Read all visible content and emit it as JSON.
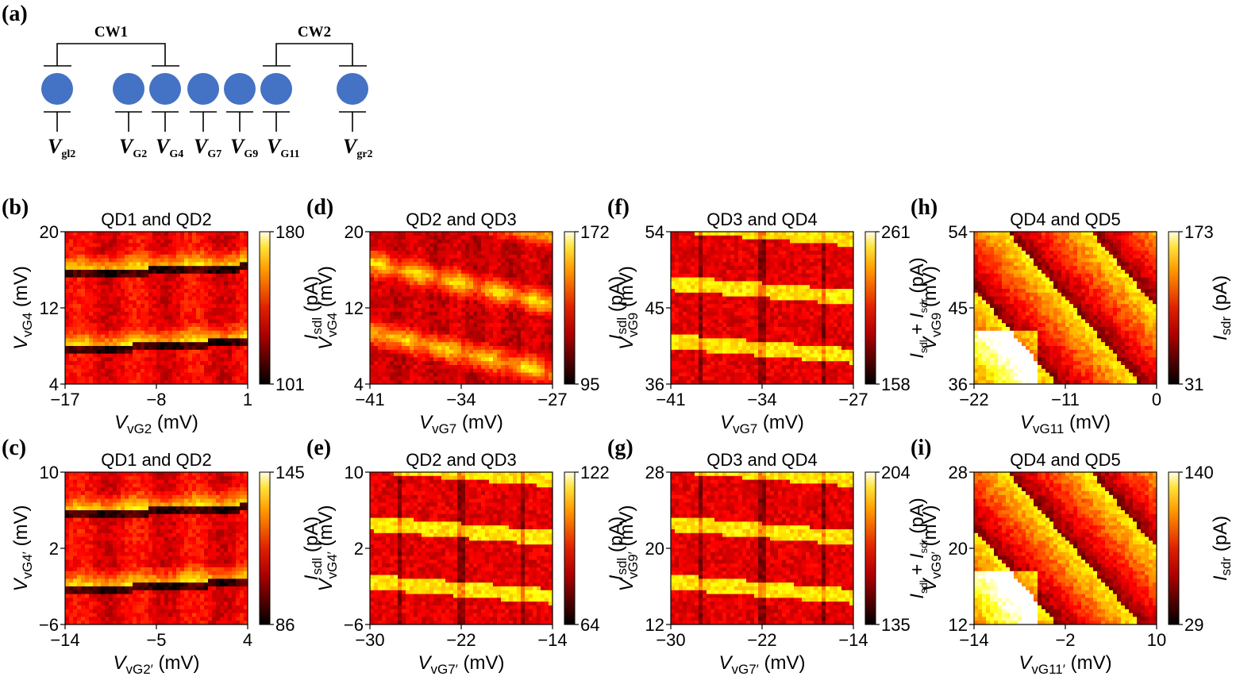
{
  "schematic": {
    "label": "(a)",
    "connections": [
      {
        "name": "CW1"
      },
      {
        "name": "CW2"
      }
    ],
    "gates": [
      {
        "letter": "V",
        "sub": "gl2"
      },
      {
        "letter": "V",
        "sub": "G2"
      },
      {
        "letter": "V",
        "sub": "G4"
      },
      {
        "letter": "V",
        "sub": "G7"
      },
      {
        "letter": "V",
        "sub": "G9"
      },
      {
        "letter": "V",
        "sub": "G11"
      },
      {
        "letter": "V",
        "sub": "gr2"
      }
    ],
    "dot_color": "#4472C4"
  },
  "chart_data": [
    {
      "id": "b",
      "label": "(b)",
      "type": "heatmap",
      "title": "QD1 and QD2",
      "xlabel": {
        "main": "V",
        "sub": "vG2",
        "prime": "",
        "unit": " (mV)"
      },
      "ylabel": {
        "main": "V",
        "sub": "vG4",
        "prime": "",
        "unit": " (mV)"
      },
      "xlim": [
        -17,
        1
      ],
      "ylim": [
        4,
        20
      ],
      "xticks": [
        "−17",
        "−8",
        "1"
      ],
      "yticks": [
        "4",
        "12",
        "20"
      ],
      "colorbar": {
        "range": [
          101,
          180
        ],
        "ticks": [
          "101",
          "180"
        ],
        "label_parts": [
          {
            "t": "I",
            "i": true
          },
          {
            "t": "sdl",
            "s": true
          },
          {
            "t": " (pA)"
          }
        ]
      }
    },
    {
      "id": "d",
      "label": "(d)",
      "type": "heatmap",
      "title": "QD2 and QD3",
      "xlabel": {
        "main": "V",
        "sub": "vG7",
        "prime": "",
        "unit": " (mV)"
      },
      "ylabel": {
        "main": "V",
        "sub": "vG4",
        "prime": "",
        "unit": " (mV)"
      },
      "xlim": [
        -41,
        -27
      ],
      "ylim": [
        4,
        20
      ],
      "xticks": [
        "−41",
        "−34",
        "−27"
      ],
      "yticks": [
        "4",
        "12",
        "20"
      ],
      "colorbar": {
        "range": [
          95,
          172
        ],
        "ticks": [
          "95",
          "172"
        ],
        "label_parts": [
          {
            "t": "I",
            "i": true
          },
          {
            "t": "sdl",
            "s": true
          },
          {
            "t": " (pA)"
          }
        ]
      }
    },
    {
      "id": "f",
      "label": "(f)",
      "type": "heatmap",
      "title": "QD3 and QD4",
      "xlabel": {
        "main": "V",
        "sub": "vG7",
        "prime": "",
        "unit": " (mV)"
      },
      "ylabel": {
        "main": "V",
        "sub": "vG9",
        "prime": "",
        "unit": " (mV)"
      },
      "xlim": [
        -41,
        -27
      ],
      "ylim": [
        36,
        54
      ],
      "xticks": [
        "−41",
        "−34",
        "−27"
      ],
      "yticks": [
        "36",
        "45",
        "54"
      ],
      "colorbar": {
        "range": [
          158,
          261
        ],
        "ticks": [
          "158",
          "261"
        ],
        "label_parts": [
          {
            "t": "I",
            "i": true
          },
          {
            "t": "sdl",
            "s": true
          },
          {
            "t": " + "
          },
          {
            "t": "I",
            "i": true
          },
          {
            "t": "sdr",
            "s": true
          },
          {
            "t": " (pA)"
          }
        ]
      }
    },
    {
      "id": "h",
      "label": "(h)",
      "type": "heatmap",
      "title": "QD4 and QD5",
      "xlabel": {
        "main": "V",
        "sub": "vG11",
        "prime": "",
        "unit": " (mV)"
      },
      "ylabel": {
        "main": "V",
        "sub": "vG9",
        "prime": "",
        "unit": " (mV)"
      },
      "xlim": [
        -22,
        0
      ],
      "ylim": [
        36,
        54
      ],
      "xticks": [
        "−22",
        "−11",
        "0"
      ],
      "yticks": [
        "36",
        "45",
        "54"
      ],
      "colorbar": {
        "range": [
          31,
          173
        ],
        "ticks": [
          "31",
          "173"
        ],
        "label_parts": [
          {
            "t": "I",
            "i": true
          },
          {
            "t": "sdr",
            "s": true
          },
          {
            "t": " (pA)"
          }
        ]
      }
    },
    {
      "id": "c",
      "label": "(c)",
      "type": "heatmap",
      "title": "QD1 and QD2",
      "xlabel": {
        "main": "V",
        "sub": "vG2",
        "prime": "′",
        "unit": " (mV)"
      },
      "ylabel": {
        "main": "V",
        "sub": "vG4",
        "prime": "′",
        "unit": " (mV)"
      },
      "xlim": [
        -14,
        4
      ],
      "ylim": [
        -6,
        10
      ],
      "xticks": [
        "−14",
        "−5",
        "4"
      ],
      "yticks": [
        "−6",
        "2",
        "10"
      ],
      "colorbar": {
        "range": [
          86,
          145
        ],
        "ticks": [
          "86",
          "145"
        ],
        "label_parts": [
          {
            "t": "I",
            "i": true
          },
          {
            "t": "sdl",
            "s": true
          },
          {
            "t": " (pA)"
          }
        ]
      }
    },
    {
      "id": "e",
      "label": "(e)",
      "type": "heatmap",
      "title": "QD2 and QD3",
      "xlabel": {
        "main": "V",
        "sub": "vG7",
        "prime": "′",
        "unit": " (mV)"
      },
      "ylabel": {
        "main": "V",
        "sub": "vG4",
        "prime": "′",
        "unit": " (mV)"
      },
      "xlim": [
        -30,
        -14
      ],
      "ylim": [
        -6,
        10
      ],
      "xticks": [
        "−30",
        "−22",
        "−14"
      ],
      "yticks": [
        "−6",
        "2",
        "10"
      ],
      "colorbar": {
        "range": [
          64,
          122
        ],
        "ticks": [
          "64",
          "122"
        ],
        "label_parts": [
          {
            "t": "I",
            "i": true
          },
          {
            "t": "sdl",
            "s": true
          },
          {
            "t": " (pA)"
          }
        ]
      }
    },
    {
      "id": "g",
      "label": "(g)",
      "type": "heatmap",
      "title": "QD3 and QD4",
      "xlabel": {
        "main": "V",
        "sub": "vG7",
        "prime": "′",
        "unit": " (mV)"
      },
      "ylabel": {
        "main": "V",
        "sub": "vG9",
        "prime": "′",
        "unit": " (mV)"
      },
      "xlim": [
        -30,
        -14
      ],
      "ylim": [
        12,
        28
      ],
      "xticks": [
        "−30",
        "−22",
        "−14"
      ],
      "yticks": [
        "12",
        "20",
        "28"
      ],
      "colorbar": {
        "range": [
          135,
          204
        ],
        "ticks": [
          "135",
          "204"
        ],
        "label_parts": [
          {
            "t": "I",
            "i": true
          },
          {
            "t": "sdl",
            "s": true
          },
          {
            "t": " + "
          },
          {
            "t": "I",
            "i": true
          },
          {
            "t": "sdr",
            "s": true
          },
          {
            "t": " (pA)"
          }
        ]
      }
    },
    {
      "id": "i",
      "label": "(i)",
      "type": "heatmap",
      "title": "QD4 and QD5",
      "xlabel": {
        "main": "V",
        "sub": "vG11",
        "prime": "′",
        "unit": " (mV)"
      },
      "ylabel": {
        "main": "V",
        "sub": "vG9",
        "prime": "′",
        "unit": " (mV)"
      },
      "xlim": [
        -14,
        10
      ],
      "ylim": [
        12,
        28
      ],
      "xticks": [
        "−14",
        "−2",
        "10"
      ],
      "yticks": [
        "12",
        "20",
        "28"
      ],
      "colorbar": {
        "range": [
          29,
          140
        ],
        "ticks": [
          "29",
          "140"
        ],
        "label_parts": [
          {
            "t": "I",
            "i": true
          },
          {
            "t": "sdr",
            "s": true
          },
          {
            "t": " (pA)"
          }
        ]
      }
    }
  ]
}
